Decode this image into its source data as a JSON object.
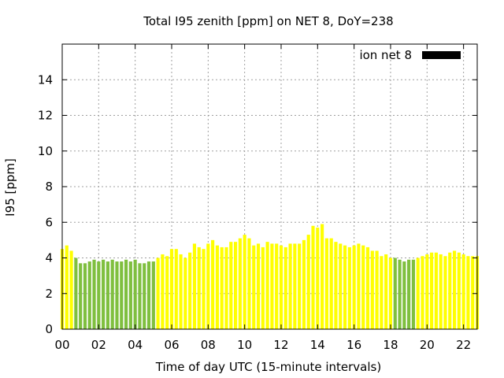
{
  "chart_data": {
    "type": "bar",
    "title": "Total I95 zenith [ppm] on NET 8, DoY=238",
    "xlabel": "Time of day UTC (15-minute intervals)",
    "ylabel": "I95 [ppm]",
    "ylim": [
      0,
      16
    ],
    "xlim": [
      0,
      22.75
    ],
    "x_tick_labels": [
      "00",
      "02",
      "04",
      "06",
      "08",
      "10",
      "12",
      "14",
      "16",
      "18",
      "20",
      "22"
    ],
    "x_tick_hours": [
      0,
      2,
      4,
      6,
      8,
      10,
      12,
      14,
      16,
      18,
      20,
      22
    ],
    "y_ticks": [
      0,
      2,
      4,
      6,
      8,
      10,
      12,
      14
    ],
    "y_tick_labels": [
      "0",
      "2",
      "4",
      "6",
      "8",
      "10",
      "12",
      "14"
    ],
    "grid": true,
    "legend": {
      "label": "ion net 8",
      "position": "top-right",
      "color": "#000000"
    },
    "colors": {
      "high": "#ffff00",
      "low": "#7fbf3f"
    },
    "interval_hours": 0.25,
    "series": [
      {
        "values": [
          4.5,
          4.7,
          4.4,
          4.0,
          3.7,
          3.7,
          3.8,
          3.9,
          3.8,
          3.9,
          3.8,
          3.9,
          3.8,
          3.8,
          3.9,
          3.8,
          3.9,
          3.7,
          3.7,
          3.8,
          3.8,
          4.0,
          4.2,
          4.1,
          4.5,
          4.5,
          4.2,
          4.0,
          4.3,
          4.8,
          4.6,
          4.5,
          4.8,
          5.0,
          4.7,
          4.6,
          4.6,
          4.9,
          4.9,
          5.1,
          5.3,
          5.1,
          4.7,
          4.8,
          4.6,
          4.9,
          4.8,
          4.8,
          4.7,
          4.6,
          4.8,
          4.8,
          4.8,
          5.0,
          5.3,
          5.8,
          5.7,
          5.9,
          5.1,
          5.1,
          4.9,
          4.8,
          4.7,
          4.6,
          4.7,
          4.8,
          4.7,
          4.6,
          4.4,
          4.4,
          4.1,
          4.2,
          4.0,
          4.0,
          3.9,
          3.8,
          3.9,
          3.9,
          4.0,
          4.1,
          4.2,
          4.3,
          4.3,
          4.2,
          4.1,
          4.3,
          4.4,
          4.3,
          4.2,
          4.1,
          4.1,
          4.1
        ],
        "classes": [
          "high",
          "high",
          "high",
          "low",
          "low",
          "low",
          "low",
          "low",
          "low",
          "low",
          "low",
          "low",
          "low",
          "low",
          "low",
          "low",
          "low",
          "low",
          "low",
          "low",
          "low",
          "high",
          "high",
          "high",
          "high",
          "high",
          "high",
          "high",
          "high",
          "high",
          "high",
          "high",
          "high",
          "high",
          "high",
          "high",
          "high",
          "high",
          "high",
          "high",
          "high",
          "high",
          "high",
          "high",
          "high",
          "high",
          "high",
          "high",
          "high",
          "high",
          "high",
          "high",
          "high",
          "high",
          "high",
          "high",
          "high",
          "high",
          "high",
          "high",
          "high",
          "high",
          "high",
          "high",
          "high",
          "high",
          "high",
          "high",
          "high",
          "high",
          "high",
          "high",
          "high",
          "low",
          "low",
          "low",
          "low",
          "low",
          "high",
          "high",
          "high",
          "high",
          "high",
          "high",
          "high",
          "high",
          "high",
          "high",
          "high",
          "high",
          "high",
          "high"
        ]
      }
    ]
  }
}
